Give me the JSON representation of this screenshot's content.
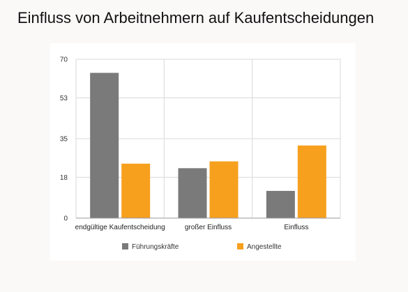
{
  "page": {
    "title": "Einfluss von Arbeitnehmern auf Kaufentscheidungen"
  },
  "chart_data": {
    "type": "bar",
    "title": "",
    "xlabel": "",
    "ylabel": "",
    "categories": [
      "endgültige Kaufentscheidung",
      "großer Einfluss",
      "Einfluss"
    ],
    "series": [
      {
        "name": "Führungskräfte",
        "color": "#7a7a7a",
        "values": [
          64,
          22,
          12
        ]
      },
      {
        "name": "Angestellte",
        "color": "#f6a01e",
        "values": [
          24,
          25,
          32
        ]
      }
    ],
    "ylim": [
      0,
      70
    ],
    "yticks": [
      "0",
      "18",
      "35",
      "53",
      "70"
    ],
    "grid": true,
    "legend_position": "bottom"
  }
}
